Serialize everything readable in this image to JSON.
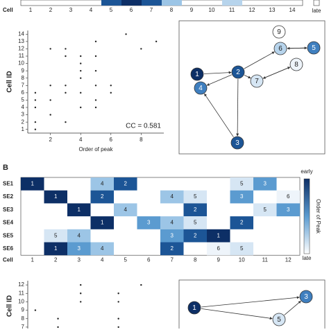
{
  "top_strip": {
    "axis_label": "Cell",
    "cells": [
      1,
      2,
      3,
      4,
      5,
      6,
      7,
      8,
      9,
      10,
      11,
      12,
      13,
      14
    ],
    "colorbar_label": "late"
  },
  "scatter_a": {
    "type": "scatter",
    "x_label": "Order of peak",
    "y_label": "Cell ID",
    "annotation": "CC = 0.581",
    "xlim": [
      0.5,
      9.5
    ],
    "ylim": [
      0.5,
      14.5
    ],
    "xticks": [
      2,
      4,
      6,
      8
    ],
    "yticks": [
      1,
      2,
      3,
      4,
      5,
      6,
      7,
      8,
      9,
      10,
      11,
      12,
      13,
      14
    ],
    "x": [
      1,
      1,
      1,
      1,
      1,
      2,
      2,
      2,
      2,
      3,
      3,
      3,
      3,
      3,
      4,
      4,
      4,
      4,
      4,
      4,
      5,
      5,
      5,
      5,
      5,
      5,
      6,
      6,
      7,
      8,
      9
    ],
    "y": [
      1,
      2,
      4,
      5,
      6,
      12,
      7,
      5,
      3,
      12,
      11,
      6,
      7,
      2,
      11,
      10,
      9,
      8,
      6,
      4,
      13,
      11,
      9,
      7,
      5,
      4,
      7,
      6,
      14,
      12,
      13
    ]
  },
  "network_a": {
    "nodes": [
      {
        "label": "9",
        "color": "#ffffff"
      },
      {
        "label": "6",
        "color": "#b7d4ec"
      },
      {
        "label": "5",
        "color": "#3f7fbf"
      },
      {
        "label": "8",
        "color": "#eef4fa"
      },
      {
        "label": "7",
        "color": "#d6e6f4"
      },
      {
        "label": "1",
        "color": "#0d2f66"
      },
      {
        "label": "2",
        "color": "#1c5596"
      },
      {
        "label": "4",
        "color": "#3f7fbf"
      },
      {
        "label": "3",
        "color": "#1c5596"
      }
    ]
  },
  "panel_b": {
    "label": "B"
  },
  "heatmap_b": {
    "rows": [
      "SE1",
      "SE2",
      "SE3",
      "SE4",
      "SE5",
      "SE6"
    ],
    "cols": [
      1,
      2,
      3,
      4,
      5,
      6,
      7,
      8,
      9,
      10,
      11,
      12
    ],
    "axis_label": "Cell",
    "values": [
      [
        1,
        null,
        null,
        4,
        2,
        null,
        null,
        null,
        null,
        5,
        3,
        null
      ],
      [
        null,
        1,
        null,
        2,
        null,
        null,
        4,
        5,
        null,
        3,
        null,
        6
      ],
      [
        null,
        null,
        1,
        null,
        4,
        null,
        null,
        2,
        null,
        null,
        5,
        3
      ],
      [
        null,
        null,
        null,
        1,
        null,
        3,
        4,
        5,
        null,
        2,
        null,
        null
      ],
      [
        null,
        5,
        4,
        null,
        null,
        null,
        3,
        2,
        1,
        null,
        null,
        null
      ],
      [
        null,
        1,
        3,
        4,
        null,
        null,
        2,
        null,
        6,
        5,
        null,
        null
      ]
    ],
    "colorbar": {
      "top": "early",
      "title": "Order of Peak",
      "bottom": "late"
    }
  },
  "scatter_b": {
    "type": "scatter",
    "y_label": "Cell ID",
    "xlim": [
      0.5,
      9.5
    ],
    "ylim": [
      6.5,
      12.5
    ],
    "yticks": [
      7,
      8,
      9,
      10,
      11,
      12
    ],
    "x": [
      1,
      2.5,
      2.5,
      4,
      4,
      4,
      6.5,
      6.5,
      6.5,
      6.5,
      8
    ],
    "y": [
      9,
      8,
      7,
      12,
      11,
      10,
      11,
      10,
      8,
      7,
      12
    ]
  },
  "network_b": {
    "nodes": [
      {
        "label": "1",
        "color": "#0d2f66"
      },
      {
        "label": "3",
        "color": "#3f7fbf"
      },
      {
        "label": "5",
        "color": "#d6e6f4"
      }
    ]
  }
}
